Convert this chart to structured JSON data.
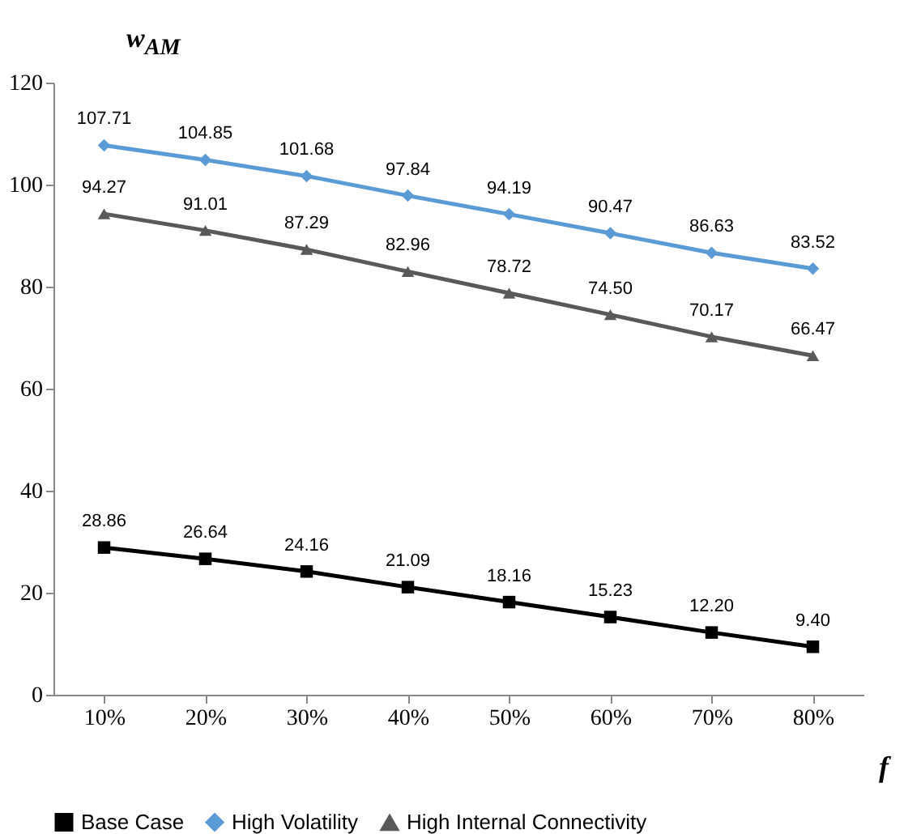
{
  "chart_data": {
    "type": "line",
    "ylabel": "w$_{AM}$",
    "xlabel": "f",
    "categories": [
      "10%",
      "20%",
      "30%",
      "40%",
      "50%",
      "60%",
      "70%",
      "80%"
    ],
    "ylim": [
      0,
      120
    ],
    "yticks": [
      0,
      20,
      40,
      60,
      80,
      100,
      120
    ],
    "legend": "bottom",
    "series": [
      {
        "name": "Base Case",
        "color": "#000000",
        "marker": "square",
        "values": [
          28.86,
          26.64,
          24.16,
          21.09,
          18.16,
          15.23,
          12.2,
          9.4
        ],
        "value_labels": [
          "28.86",
          "26.64",
          "24.16",
          "21.09",
          "18.16",
          "15.23",
          "12.20",
          "9.40"
        ]
      },
      {
        "name": "High Volatility",
        "color": "#5b9bd5",
        "marker": "diamond",
        "values": [
          107.71,
          104.85,
          101.68,
          97.84,
          94.19,
          90.47,
          86.63,
          83.52
        ],
        "value_labels": [
          "107.71",
          "104.85",
          "101.68",
          "97.84",
          "94.19",
          "90.47",
          "86.63",
          "83.52"
        ]
      },
      {
        "name": "High Internal Connectivity",
        "color": "#595959",
        "marker": "triangle",
        "values": [
          94.27,
          91.01,
          87.29,
          82.96,
          78.72,
          74.5,
          70.17,
          66.47
        ],
        "value_labels": [
          "94.27",
          "91.01",
          "87.29",
          "82.96",
          "78.72",
          "74.50",
          "70.17",
          "66.47"
        ]
      }
    ]
  }
}
